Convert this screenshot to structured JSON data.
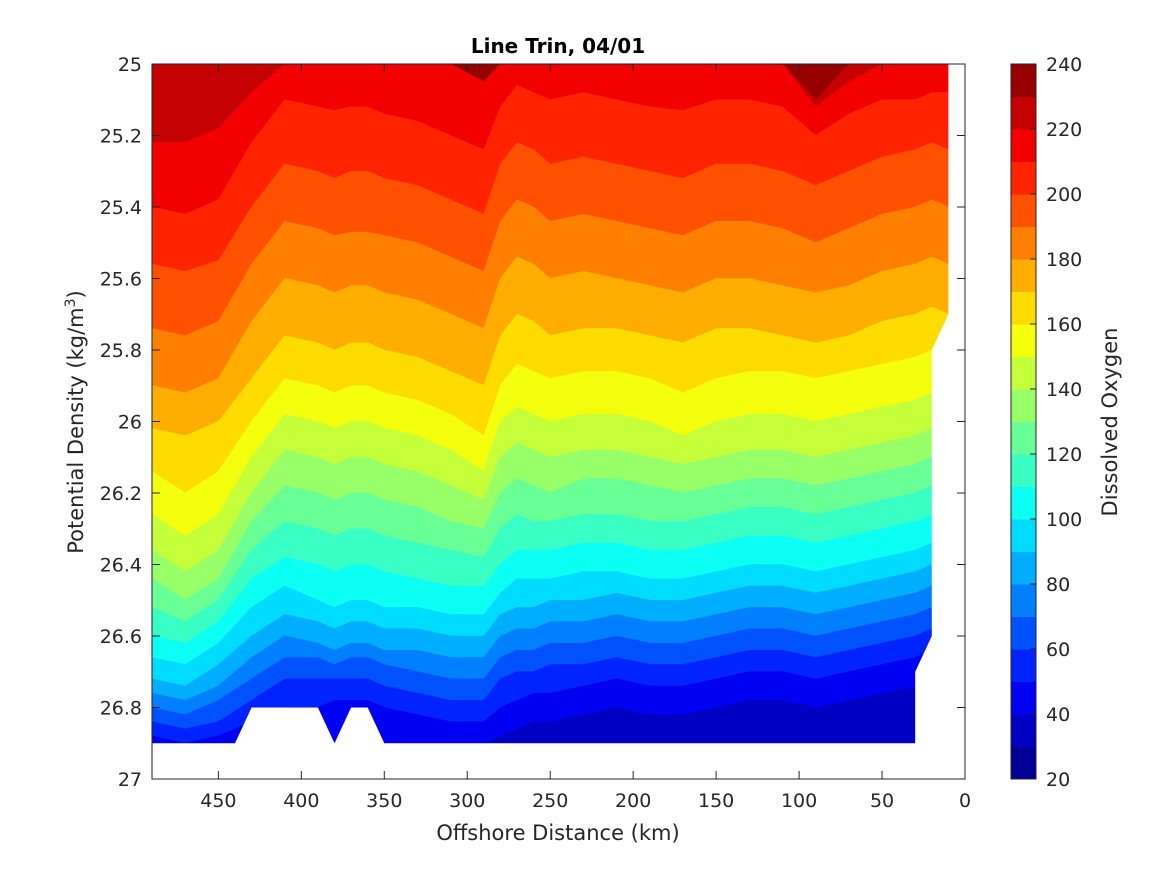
{
  "chart_data": {
    "type": "contourf",
    "title": "Line Trin, 04/01",
    "xlabel": "Offshore Distance (km)",
    "ylabel_main": "Potential Density (kg/m",
    "ylabel_sup": "3",
    "ylabel_close": ")",
    "colorbar_label": "Dissolved Oxygen",
    "x_reversed": true,
    "y_reversed": true,
    "xlim": [
      0,
      490
    ],
    "ylim": [
      25,
      27
    ],
    "xticks": [
      450,
      400,
      350,
      300,
      250,
      200,
      150,
      100,
      50,
      0
    ],
    "yticks": [
      25,
      25.2,
      25.4,
      25.6,
      25.8,
      26,
      26.2,
      26.4,
      26.6,
      26.8,
      27
    ],
    "xtick_labels": [
      "450",
      "400",
      "350",
      "300",
      "250",
      "200",
      "150",
      "100",
      "50",
      "0"
    ],
    "ytick_labels": [
      "25",
      "25.2",
      "25.4",
      "25.6",
      "25.8",
      "26",
      "26.2",
      "26.4",
      "26.6",
      "26.8",
      "27"
    ],
    "clim": [
      20,
      240
    ],
    "colorbar_ticks": [
      "240",
      "220",
      "200",
      "180",
      "160",
      "140",
      "120",
      "100",
      "80",
      "60",
      "40",
      "20"
    ],
    "colormap": "jet",
    "level_step": 10,
    "x_samples": [
      490,
      470,
      450,
      430,
      410,
      390,
      380,
      370,
      360,
      350,
      330,
      310,
      290,
      280,
      270,
      260,
      250,
      230,
      210,
      190,
      170,
      150,
      130,
      110,
      90,
      70,
      50,
      30,
      20,
      10
    ],
    "isopycnal_depth_of_contour": {
      "comment": "density (kg/m3) at which each dissolved-oxygen contour level occurs, per x_sample",
      "levels": [
        240,
        230,
        220,
        210,
        200,
        190,
        180,
        170,
        160,
        150,
        140,
        130,
        120,
        110,
        100,
        90,
        80,
        70,
        60,
        50,
        40,
        30
      ],
      "profiles": [
        [
          25.0,
          25.0,
          25.0,
          25.0,
          25.0,
          25.0,
          25.0,
          25.0,
          25.0,
          25.0,
          25.0,
          25.0,
          25.0,
          25.0,
          25.0,
          25.0,
          25.0,
          25.0,
          25.0,
          25.0,
          25.0,
          25.0,
          25.0,
          25.0,
          25.0,
          25.0,
          25.0,
          25.0,
          25.0,
          25.0
        ],
        [
          25.0,
          25.0,
          25.0,
          25.0,
          25.0,
          25.0,
          25.0,
          25.0,
          25.0,
          25.0,
          25.0,
          25.0,
          25.05,
          25.0,
          25.0,
          25.0,
          25.0,
          25.0,
          25.0,
          25.0,
          25.0,
          25.0,
          25.0,
          25.0,
          25.1,
          25.0,
          25.0,
          25.0,
          25.0,
          25.0
        ],
        [
          25.22,
          25.22,
          25.18,
          25.08,
          25.0,
          25.0,
          25.0,
          25.0,
          25.0,
          25.0,
          25.0,
          25.0,
          25.05,
          25.0,
          25.0,
          25.0,
          25.0,
          25.0,
          25.0,
          25.0,
          25.0,
          25.0,
          25.0,
          25.0,
          25.12,
          25.05,
          25.0,
          25.0,
          25.0,
          25.0
        ],
        [
          25.4,
          25.42,
          25.38,
          25.22,
          25.1,
          25.12,
          25.13,
          25.12,
          25.12,
          25.14,
          25.16,
          25.2,
          25.24,
          25.12,
          25.06,
          25.08,
          25.1,
          25.08,
          25.1,
          25.12,
          25.13,
          25.1,
          25.1,
          25.12,
          25.2,
          25.14,
          25.1,
          25.1,
          25.08,
          25.08
        ],
        [
          25.56,
          25.58,
          25.55,
          25.4,
          25.28,
          25.3,
          25.32,
          25.3,
          25.3,
          25.32,
          25.34,
          25.38,
          25.42,
          25.28,
          25.22,
          25.24,
          25.28,
          25.26,
          25.28,
          25.3,
          25.32,
          25.28,
          25.28,
          25.3,
          25.34,
          25.3,
          25.26,
          25.24,
          25.22,
          25.24
        ],
        [
          25.74,
          25.76,
          25.72,
          25.56,
          25.44,
          25.46,
          25.48,
          25.47,
          25.47,
          25.48,
          25.5,
          25.54,
          25.58,
          25.44,
          25.38,
          25.4,
          25.44,
          25.42,
          25.44,
          25.46,
          25.48,
          25.44,
          25.44,
          25.46,
          25.5,
          25.46,
          25.42,
          25.4,
          25.38,
          25.4
        ],
        [
          25.9,
          25.92,
          25.88,
          25.72,
          25.6,
          25.62,
          25.64,
          25.62,
          25.62,
          25.64,
          25.66,
          25.7,
          25.74,
          25.6,
          25.54,
          25.56,
          25.6,
          25.58,
          25.6,
          25.62,
          25.64,
          25.6,
          25.6,
          25.62,
          25.64,
          25.62,
          25.58,
          25.56,
          25.54,
          25.56
        ],
        [
          26.02,
          26.04,
          26.0,
          25.88,
          25.76,
          25.78,
          25.8,
          25.78,
          25.78,
          25.8,
          25.82,
          25.86,
          25.9,
          25.76,
          25.7,
          25.72,
          25.76,
          25.74,
          25.74,
          25.76,
          25.78,
          25.74,
          25.74,
          25.76,
          25.78,
          25.76,
          25.72,
          25.7,
          25.68,
          25.7
        ],
        [
          26.14,
          26.2,
          26.14,
          26.0,
          25.88,
          25.9,
          25.92,
          25.9,
          25.9,
          25.92,
          25.94,
          25.98,
          26.04,
          25.9,
          25.84,
          25.86,
          25.88,
          25.86,
          25.86,
          25.88,
          25.92,
          25.88,
          25.86,
          25.86,
          25.88,
          25.86,
          25.84,
          25.82,
          25.8,
          25.82
        ],
        [
          26.26,
          26.32,
          26.26,
          26.1,
          25.98,
          26.0,
          26.02,
          26.0,
          26.0,
          26.02,
          26.04,
          26.08,
          26.14,
          26.0,
          25.96,
          25.98,
          26.0,
          25.98,
          25.98,
          26.0,
          26.04,
          26.0,
          25.98,
          25.98,
          26.0,
          25.98,
          25.96,
          25.94,
          25.92,
          25.94
        ],
        [
          26.36,
          26.42,
          26.36,
          26.2,
          26.08,
          26.1,
          26.12,
          26.1,
          26.1,
          26.12,
          26.14,
          26.18,
          26.22,
          26.1,
          26.06,
          26.08,
          26.1,
          26.08,
          26.08,
          26.1,
          26.12,
          26.1,
          26.08,
          26.08,
          26.1,
          26.08,
          26.06,
          26.04,
          26.02,
          26.04
        ],
        [
          26.44,
          26.5,
          26.44,
          26.28,
          26.18,
          26.2,
          26.22,
          26.2,
          26.2,
          26.22,
          26.24,
          26.28,
          26.3,
          26.2,
          26.16,
          26.18,
          26.2,
          26.16,
          26.16,
          26.18,
          26.2,
          26.18,
          26.16,
          26.16,
          26.18,
          26.16,
          26.14,
          26.12,
          26.1,
          26.12
        ],
        [
          26.52,
          26.56,
          26.5,
          26.36,
          26.28,
          26.3,
          26.32,
          26.3,
          26.3,
          26.32,
          26.34,
          26.36,
          26.38,
          26.3,
          26.26,
          26.28,
          26.28,
          26.26,
          26.26,
          26.28,
          26.28,
          26.26,
          26.24,
          26.24,
          26.26,
          26.24,
          26.22,
          26.2,
          26.18,
          26.2
        ],
        [
          26.6,
          26.62,
          26.56,
          26.44,
          26.38,
          26.4,
          26.42,
          26.4,
          26.4,
          26.42,
          26.44,
          26.46,
          26.46,
          26.4,
          26.36,
          26.36,
          26.36,
          26.34,
          26.34,
          26.36,
          26.36,
          26.34,
          26.32,
          26.32,
          26.34,
          26.32,
          26.3,
          26.28,
          26.26,
          26.28
        ],
        [
          26.66,
          26.68,
          26.62,
          26.52,
          26.46,
          26.5,
          26.52,
          26.5,
          26.5,
          26.52,
          26.52,
          26.54,
          26.54,
          26.48,
          26.44,
          26.44,
          26.44,
          26.42,
          26.42,
          26.44,
          26.44,
          26.42,
          26.4,
          26.4,
          26.42,
          26.4,
          26.38,
          26.36,
          26.34,
          26.36
        ],
        [
          26.72,
          26.74,
          26.68,
          26.6,
          26.54,
          26.56,
          26.58,
          26.56,
          26.56,
          26.58,
          26.58,
          26.6,
          26.6,
          26.54,
          26.52,
          26.52,
          26.5,
          26.5,
          26.48,
          26.5,
          26.5,
          26.48,
          26.46,
          26.46,
          26.48,
          26.46,
          26.44,
          26.42,
          26.4,
          26.42
        ],
        [
          26.76,
          26.78,
          26.74,
          26.66,
          26.6,
          26.62,
          26.64,
          26.62,
          26.62,
          26.64,
          26.64,
          26.66,
          26.66,
          26.6,
          26.58,
          26.58,
          26.56,
          26.56,
          26.54,
          26.56,
          26.56,
          26.54,
          26.52,
          26.52,
          26.54,
          26.52,
          26.5,
          26.48,
          26.46,
          26.48
        ],
        [
          26.8,
          26.82,
          26.78,
          26.72,
          26.66,
          26.66,
          26.68,
          26.66,
          26.66,
          26.68,
          26.7,
          26.72,
          26.72,
          26.66,
          26.64,
          26.64,
          26.62,
          26.62,
          26.6,
          26.62,
          26.62,
          26.6,
          26.58,
          26.58,
          26.6,
          26.58,
          26.56,
          26.54,
          26.52,
          26.54
        ],
        [
          26.84,
          26.86,
          26.84,
          26.78,
          26.72,
          26.72,
          26.72,
          26.72,
          26.72,
          26.74,
          26.76,
          26.78,
          26.78,
          26.72,
          26.7,
          26.7,
          26.68,
          26.68,
          26.66,
          26.68,
          26.68,
          26.66,
          26.64,
          26.64,
          26.66,
          26.64,
          26.62,
          26.6,
          26.58,
          26.6
        ],
        [
          26.88,
          26.9,
          26.88,
          26.84,
          26.8,
          26.8,
          26.78,
          26.78,
          26.78,
          26.8,
          26.82,
          26.84,
          26.84,
          26.8,
          26.78,
          26.76,
          26.76,
          26.74,
          26.72,
          26.74,
          26.74,
          26.72,
          26.7,
          26.7,
          26.72,
          26.7,
          26.68,
          26.66,
          26.64,
          26.66
        ],
        [
          26.9,
          26.9,
          26.9,
          26.9,
          26.9,
          26.9,
          26.9,
          26.9,
          26.9,
          26.9,
          26.9,
          26.9,
          26.9,
          26.88,
          26.86,
          26.84,
          26.84,
          26.82,
          26.8,
          26.82,
          26.82,
          26.8,
          26.78,
          26.78,
          26.8,
          26.78,
          26.76,
          26.74,
          26.72,
          26.74
        ],
        [
          26.9,
          26.9,
          26.9,
          26.9,
          26.9,
          26.9,
          26.9,
          26.9,
          26.9,
          26.9,
          26.9,
          26.9,
          26.9,
          26.9,
          26.9,
          26.9,
          26.9,
          26.9,
          26.9,
          26.9,
          26.9,
          26.9,
          26.9,
          26.9,
          26.9,
          26.9,
          26.9,
          26.9,
          26.9,
          26.9
        ]
      ]
    },
    "data_gaps": [
      {
        "x_start": 440,
        "x_end": 350,
        "ymin": 26.8,
        "shape": "notches"
      },
      {
        "x_start": 30,
        "x_end": 0,
        "boundary": "coastline"
      }
    ]
  }
}
